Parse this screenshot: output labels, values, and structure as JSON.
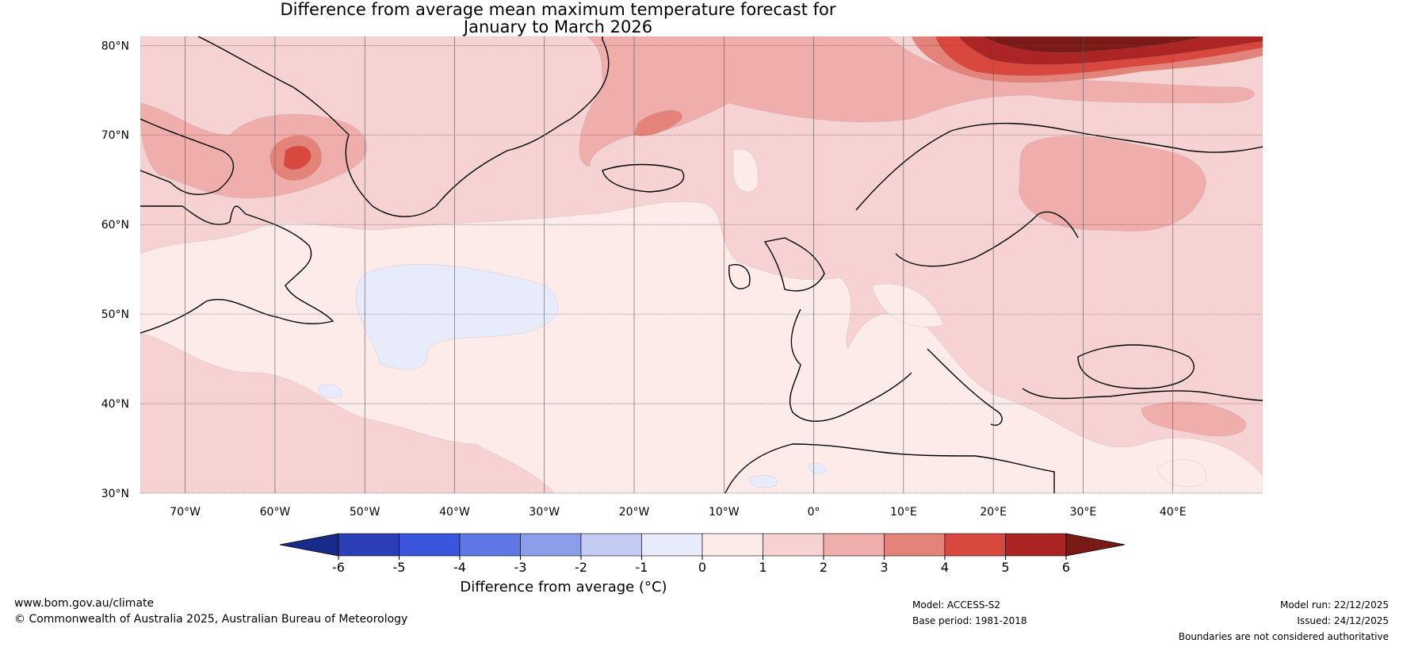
{
  "title": {
    "line1": "Difference from average mean maximum temperature forecast for",
    "line2": "January to March 2026"
  },
  "map": {
    "lon_min": -75,
    "lon_max": 50,
    "lat_min": 30,
    "lat_max": 81,
    "lat_ticks": [
      {
        "value": 80,
        "label": "80°N"
      },
      {
        "value": 70,
        "label": "70°N"
      },
      {
        "value": 60,
        "label": "60°N"
      },
      {
        "value": 50,
        "label": "50°N"
      },
      {
        "value": 40,
        "label": "40°N"
      },
      {
        "value": 30,
        "label": "30°N"
      }
    ],
    "lon_ticks": [
      {
        "value": -70,
        "label": "70°W"
      },
      {
        "value": -60,
        "label": "60°W"
      },
      {
        "value": -50,
        "label": "50°W"
      },
      {
        "value": -40,
        "label": "40°W"
      },
      {
        "value": -30,
        "label": "30°W"
      },
      {
        "value": -20,
        "label": "20°W"
      },
      {
        "value": -10,
        "label": "10°W"
      },
      {
        "value": 0,
        "label": "0°"
      },
      {
        "value": 10,
        "label": "10°E"
      },
      {
        "value": 20,
        "label": "20°E"
      },
      {
        "value": 30,
        "label": "30°E"
      },
      {
        "value": 40,
        "label": "40°E"
      }
    ]
  },
  "colorbar": {
    "levels": [
      "-6",
      "-5",
      "-4",
      "-3",
      "-2",
      "-1",
      "0",
      "1",
      "2",
      "3",
      "4",
      "5",
      "6"
    ],
    "colors": [
      "#2b3eb6",
      "#3a56df",
      "#6078e6",
      "#8b9eeb",
      "#c3cbf2",
      "#e8ebfb",
      "#fcebe8",
      "#f6d3d2",
      "#efaeac",
      "#e48379",
      "#d9483f",
      "#ad2424"
    ],
    "under_color": "#1a2a88",
    "over_color": "#7a1a16",
    "label": "Difference from average (°C)"
  },
  "anomaly_colors": {
    "neg1": "#e8ebfb",
    "pos0": "#fcebe8",
    "pos1": "#f6d3d2",
    "pos2": "#efaeac",
    "pos3": "#e48379",
    "pos4": "#d9483f",
    "pos5": "#ad2424",
    "pos6": "#7a1a16"
  },
  "footer": {
    "url": "www.bom.gov.au/climate",
    "copyright": "© Commonwealth of Australia 2025, Australian Bureau of Meteorology",
    "model": "Model: ACCESS-S2",
    "base_period": "Base period: 1981-2018",
    "model_run": "Model run: 22/12/2025",
    "issued": "Issued: 24/12/2025",
    "disclaimer": "Boundaries are not considered authoritative"
  }
}
